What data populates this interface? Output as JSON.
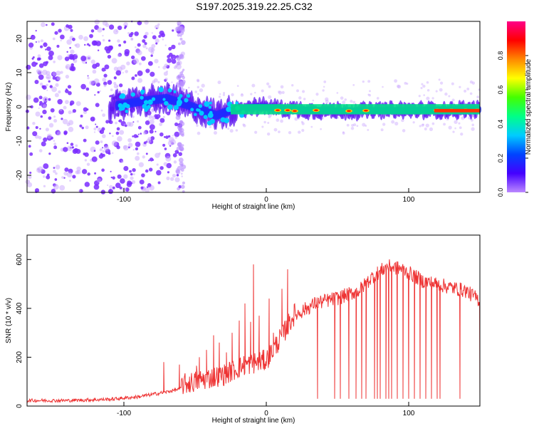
{
  "title": "S197.2025.319.22.25.C32",
  "colors": {
    "line": "#ee3333",
    "axis": "#000000",
    "spectrogram_band": "#00e08a",
    "spectrogram_scatter": "#7a2cff"
  },
  "chart_data": [
    {
      "type": "heatmap",
      "title": "S197.2025.319.22.25.C32",
      "xlabel": "Height of straight line (km)",
      "ylabel": "Frequency (Hz)",
      "xlim": [
        -168,
        150
      ],
      "ylim": [
        -25,
        25
      ],
      "x_ticks": [
        -100,
        0,
        100
      ],
      "y_ticks": [
        -20,
        -10,
        0,
        10,
        20
      ],
      "colorbar": {
        "label": "Normalized spectral amplitude",
        "range": [
          0,
          1
        ],
        "ticks": [
          "0.0",
          "0.2",
          "0.4",
          "0.6",
          "0.8"
        ],
        "palette": [
          "#bb88ff",
          "#4400ff",
          "#0044ff",
          "#00ccff",
          "#00ff88",
          "#44ff00",
          "#ffff00",
          "#ff8800",
          "#ff0000",
          "#ff0088"
        ]
      },
      "band_centerline": {
        "x": [
          -110,
          -90,
          -70,
          -55,
          -45,
          -35,
          -25,
          -10,
          0,
          20,
          50,
          100,
          150
        ],
        "y": [
          0,
          1.5,
          2.5,
          0.5,
          -1,
          -2.5,
          -1,
          0,
          0,
          -0.8,
          -1.2,
          -1.0,
          -0.8
        ]
      }
    },
    {
      "type": "line",
      "xlabel": "Height of straight line (km)",
      "ylabel": "SNR (10 * v/v)",
      "xlim": [
        -168,
        150
      ],
      "ylim": [
        0,
        700
      ],
      "x_ticks": [
        -100,
        0,
        100
      ],
      "y_ticks": [
        0,
        200,
        400,
        600
      ],
      "series": [
        {
          "name": "SNR",
          "trend_x": [
            -168,
            -140,
            -110,
            -90,
            -70,
            -55,
            -45,
            -30,
            -15,
            0,
            10,
            20,
            35,
            50,
            65,
            75,
            85,
            95,
            110,
            125,
            140,
            150
          ],
          "trend_y": [
            20,
            20,
            25,
            35,
            55,
            75,
            90,
            110,
            150,
            170,
            260,
            360,
            410,
            430,
            460,
            520,
            560,
            550,
            500,
            480,
            460,
            420
          ],
          "spike_x": [
            -72,
            -61,
            -49,
            -47,
            -42,
            -37,
            -33,
            -28,
            -24,
            -19,
            -15,
            -11,
            -9,
            -5,
            2,
            5,
            11,
            15
          ],
          "spike_y": [
            180,
            170,
            165,
            200,
            230,
            290,
            260,
            220,
            300,
            350,
            420,
            345,
            580,
            370,
            440,
            300,
            480,
            560
          ],
          "dip_x": [
            36,
            48,
            52,
            58,
            63,
            67,
            70,
            76,
            78,
            80,
            84,
            86,
            88,
            92,
            96,
            100,
            104,
            108,
            112,
            116,
            120,
            122,
            136,
            150
          ],
          "dip_y": [
            30,
            30,
            30,
            30,
            30,
            30,
            30,
            30,
            30,
            30,
            30,
            30,
            30,
            30,
            30,
            30,
            30,
            30,
            30,
            30,
            30,
            30,
            30,
            30
          ]
        }
      ]
    }
  ]
}
